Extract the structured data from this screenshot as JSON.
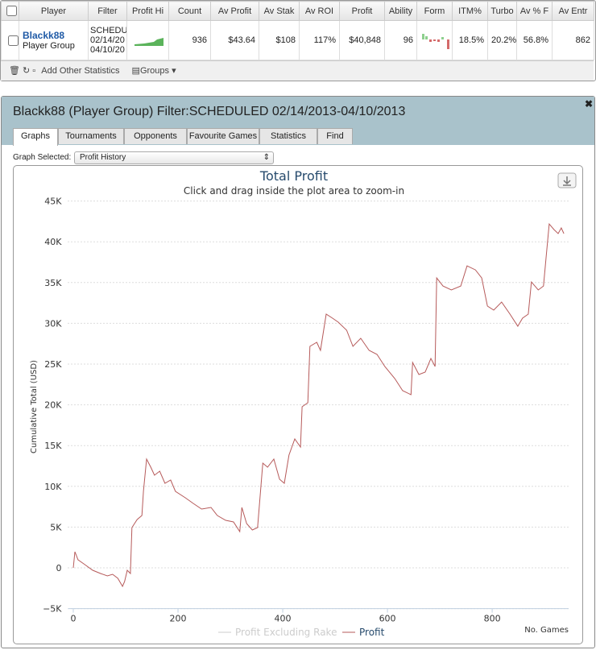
{
  "table": {
    "headers": [
      "Player",
      "Filter",
      "Profit Hi",
      "Count",
      "Av Profit",
      "Av Stak",
      "Av ROI",
      "Profit",
      "Ability",
      "Form",
      "ITM%",
      "Turbo",
      "Av % F",
      "Av Entr"
    ],
    "row": {
      "player": [
        "Blackk88",
        "Player Group"
      ],
      "filter": [
        "SCHEDU",
        "02/14/20",
        "04/10/20"
      ],
      "count": "936",
      "av_profit": "$43.64",
      "av_stake": "$108",
      "av_roi": "117%",
      "profit": "$40,848",
      "ability": "96",
      "itm": "18.5%",
      "turbo": "20.2%",
      "av_f": "56.8%",
      "av_entr": "862"
    }
  },
  "toolbar": {
    "add": "Add Other Statistics",
    "groups": "Groups"
  },
  "panel": {
    "title": "Blackk88 (Player Group) Filter:SCHEDULED 02/14/2013-04/10/2013",
    "tabs": [
      "Graphs",
      "Tournaments",
      "Opponents",
      "Favourite Games",
      "Statistics",
      "Find"
    ],
    "graph_label": "Graph Selected:",
    "graph_value": "Profit History"
  },
  "chart_data": {
    "type": "line",
    "title": "Total Profit",
    "subtitle": "Click and drag inside the plot area to zoom-in",
    "y_label": "Cumulative Total (USD)",
    "x_label": "No. Games",
    "inactive_legend": "Profit Excluding Rake",
    "grid": true,
    "xlim": [
      -10,
      946
    ],
    "xticks": [
      0,
      200,
      400,
      600,
      800
    ],
    "ylim": [
      -5000,
      45000
    ],
    "yticks": [
      {
        "value": -5000,
        "label": "−5K"
      },
      0,
      {
        "value": 5000,
        "label": "5K"
      },
      {
        "value": 10000,
        "label": "10K"
      },
      {
        "value": 15000,
        "label": "15K"
      },
      {
        "value": 20000,
        "label": "20K"
      },
      {
        "value": 25000,
        "label": "25K"
      },
      {
        "value": 30000,
        "label": "30K"
      },
      {
        "value": 35000,
        "label": "35K"
      },
      {
        "value": 40000,
        "label": "40K"
      },
      {
        "value": 45000,
        "label": "45K"
      }
    ],
    "x": [
      0,
      3,
      9,
      20,
      37,
      52,
      65,
      75,
      85,
      94,
      98,
      103,
      109,
      112,
      122,
      131,
      134,
      140,
      148,
      155,
      165,
      175,
      186,
      195,
      214,
      229,
      245,
      263,
      275,
      291,
      306,
      318,
      322,
      331,
      342,
      352,
      362,
      371,
      383,
      394,
      403,
      412,
      423,
      434,
      437,
      448,
      452,
      465,
      472,
      483,
      495,
      506,
      522,
      534,
      549,
      565,
      580,
      595,
      614,
      629,
      645,
      648,
      660,
      672,
      683,
      691,
      694,
      706,
      722,
      740,
      752,
      768,
      780,
      791,
      803,
      818,
      834,
      849,
      858,
      869,
      875,
      888,
      898,
      903,
      909,
      918,
      926,
      932,
      937
    ],
    "series": [
      {
        "name": "Profit",
        "color": "#b65a5a",
        "values": [
          0,
          1976,
          988,
          494,
          -296,
          -692,
          -988,
          -790,
          -1284,
          -2272,
          -1680,
          -296,
          -692,
          4940,
          5928,
          6422,
          9386,
          13338,
          12350,
          11362,
          11856,
          10374,
          10769,
          9386,
          8596,
          7904,
          7212,
          7410,
          6422,
          5829,
          5632,
          4446,
          7410,
          5434,
          4643,
          4940,
          12844,
          12350,
          13338,
          10868,
          10374,
          13832,
          15808,
          14820,
          19760,
          20254,
          27170,
          27664,
          26676,
          31122,
          30628,
          30134,
          29146,
          27170,
          28158,
          26676,
          26182,
          24700,
          23218,
          21736,
          21242,
          25194,
          23712,
          24009,
          25688,
          24700,
          35568,
          34580,
          34086,
          34580,
          37050,
          36556,
          35568,
          32110,
          31616,
          32604,
          31122,
          29640,
          30628,
          31122,
          35074,
          34086,
          34580,
          38038,
          42188,
          41498,
          41004,
          41696,
          41004
        ]
      }
    ]
  }
}
